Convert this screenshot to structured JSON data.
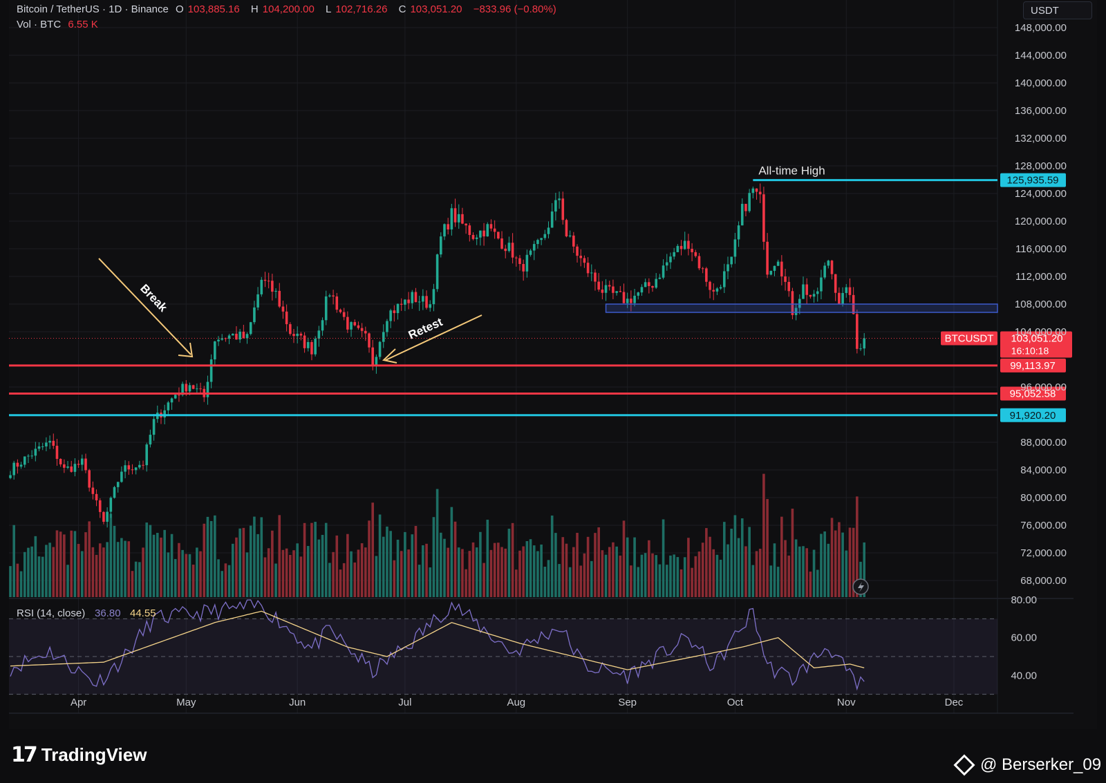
{
  "header": {
    "symbol": "Bitcoin / TetherUS · 1D · Binance",
    "open_label": "O",
    "open": "103,885.16",
    "high_label": "H",
    "high": "104,200.00",
    "low_label": "L",
    "low": "102,716.26",
    "close_label": "C",
    "close": "103,051.20",
    "change": "−833.96 (−0.80%)",
    "vol_label": "Vol · BTC",
    "vol": "6.55 K",
    "currency": "USDT"
  },
  "colors": {
    "up": "#22ab94",
    "down": "#f23645",
    "cyan": "#21c5e0",
    "red_line": "#f23645",
    "zone": "#3d5bcc",
    "rsi": "#7e70c9",
    "rsi_ma": "#f5d48a",
    "annot": "#f5c97a"
  },
  "chart_data": [
    {
      "type": "candlestick",
      "xlabel": "",
      "ylabel": "",
      "ylim": [
        66000,
        148000
      ],
      "yticks": [
        148000,
        144000,
        140000,
        136000,
        132000,
        128000,
        124000,
        120000,
        116000,
        112000,
        108000,
        104000,
        96000,
        88000,
        84000,
        80000,
        76000,
        72000,
        68000
      ],
      "ytick_labels": [
        "148,000.00",
        "144,000.00",
        "140,000.00",
        "136,000.00",
        "132,000.00",
        "128,000.00",
        "124,000.00",
        "120,000.00",
        "116,000.00",
        "112,000.00",
        "108,000.00",
        "104,000.00",
        "96,000.00",
        "88,000.00",
        "84,000.00",
        "80,000.00",
        "76,000.00",
        "72,000.00",
        "68,000.00"
      ],
      "xticks": [
        "Apr",
        "May",
        "Jun",
        "Jul",
        "Aug",
        "Sep",
        "Oct",
        "Nov",
        "Dec"
      ],
      "series_anchors": [
        [
          "2025-03-13",
          84000
        ],
        [
          "2025-03-18",
          86000
        ],
        [
          "2025-03-24",
          88000
        ],
        [
          "2025-03-28",
          84000
        ],
        [
          "2025-04-02",
          85000
        ],
        [
          "2025-04-06",
          79000
        ],
        [
          "2025-04-08",
          76300
        ],
        [
          "2025-04-13",
          84000
        ],
        [
          "2025-04-19",
          85000
        ],
        [
          "2025-04-22",
          91000
        ],
        [
          "2025-04-28",
          95000
        ],
        [
          "2025-05-02",
          96500
        ],
        [
          "2025-05-06",
          94500
        ],
        [
          "2025-05-09",
          103000
        ],
        [
          "2025-05-14",
          103500
        ],
        [
          "2025-05-18",
          103000
        ],
        [
          "2025-05-22",
          111500
        ],
        [
          "2025-05-26",
          109500
        ],
        [
          "2025-05-30",
          104000
        ],
        [
          "2025-06-05",
          101500
        ],
        [
          "2025-06-10",
          109800
        ],
        [
          "2025-06-15",
          105000
        ],
        [
          "2025-06-20",
          103000
        ],
        [
          "2025-06-22",
          99500
        ],
        [
          "2025-06-26",
          106500
        ],
        [
          "2025-07-03",
          109000
        ],
        [
          "2025-07-08",
          108000
        ],
        [
          "2025-07-11",
          117500
        ],
        [
          "2025-07-14",
          121000
        ],
        [
          "2025-07-20",
          118000
        ],
        [
          "2025-07-24",
          119000
        ],
        [
          "2025-07-31",
          115500
        ],
        [
          "2025-08-02",
          113000
        ],
        [
          "2025-08-08",
          117000
        ],
        [
          "2025-08-13",
          123500
        ],
        [
          "2025-08-15",
          118000
        ],
        [
          "2025-08-20",
          113500
        ],
        [
          "2025-08-25",
          110000
        ],
        [
          "2025-09-01",
          108500
        ],
        [
          "2025-09-08",
          111000
        ],
        [
          "2025-09-14",
          115500
        ],
        [
          "2025-09-18",
          117000
        ],
        [
          "2025-09-25",
          109500
        ],
        [
          "2025-09-30",
          114000
        ],
        [
          "2025-10-03",
          121500
        ],
        [
          "2025-10-06",
          124500
        ],
        [
          "2025-10-08",
          123000
        ],
        [
          "2025-10-10",
          113000
        ],
        [
          "2025-10-13",
          115000
        ],
        [
          "2025-10-17",
          107000
        ],
        [
          "2025-10-20",
          110500
        ],
        [
          "2025-10-23",
          108500
        ],
        [
          "2025-10-27",
          114500
        ],
        [
          "2025-10-30",
          108500
        ],
        [
          "2025-11-02",
          110000
        ],
        [
          "2025-11-04",
          101500
        ],
        [
          "2025-11-06",
          103051
        ]
      ],
      "last_price": "103,051.20",
      "last_label": "BTCUSDT",
      "countdown": "16:10:18",
      "levels": [
        {
          "value": 125935.59,
          "label": "125,935.59",
          "color": "cyan",
          "from": "2025-10-06",
          "caption": "All-time High"
        },
        {
          "value": 99113.97,
          "label": "99,113.97",
          "color": "red"
        },
        {
          "value": 95052.58,
          "label": "95,052.58",
          "color": "red"
        },
        {
          "value": 91920.2,
          "label": "91,920.20",
          "color": "cyan"
        }
      ],
      "zone": {
        "low": 106800,
        "high": 108000,
        "from": "2025-08-26"
      },
      "annotations": [
        "Break",
        "Retest"
      ]
    },
    {
      "type": "line",
      "title": "RSI (14, close)",
      "values_shown": [
        "36.80",
        "44.55"
      ],
      "ylim": [
        20,
        80
      ],
      "yticks": [
        80,
        60,
        40
      ],
      "ytick_labels": [
        "80.00",
        "60.00",
        "40.00"
      ],
      "bands": [
        70,
        50,
        30
      ],
      "series": [
        {
          "name": "RSI",
          "anchors": [
            [
              "2025-03-13",
              44
            ],
            [
              "2025-03-24",
              53
            ],
            [
              "2025-04-06",
              36
            ],
            [
              "2025-04-13",
              48
            ],
            [
              "2025-04-22",
              70
            ],
            [
              "2025-05-09",
              74
            ],
            [
              "2025-05-22",
              77
            ],
            [
              "2025-06-05",
              54
            ],
            [
              "2025-06-10",
              64
            ],
            [
              "2025-06-22",
              42
            ],
            [
              "2025-07-03",
              58
            ],
            [
              "2025-07-14",
              78
            ],
            [
              "2025-07-31",
              52
            ],
            [
              "2025-08-13",
              66
            ],
            [
              "2025-08-20",
              45
            ],
            [
              "2025-09-01",
              40
            ],
            [
              "2025-09-18",
              60
            ],
            [
              "2025-09-25",
              44
            ],
            [
              "2025-10-06",
              74
            ],
            [
              "2025-10-10",
              45
            ],
            [
              "2025-10-17",
              38
            ],
            [
              "2025-10-27",
              56
            ],
            [
              "2025-11-04",
              34
            ],
            [
              "2025-11-06",
              37
            ]
          ]
        },
        {
          "name": "RSI-based MA",
          "anchors": [
            [
              "2025-03-13",
              45
            ],
            [
              "2025-04-08",
              47
            ],
            [
              "2025-05-09",
              68
            ],
            [
              "2025-05-22",
              74
            ],
            [
              "2025-06-15",
              55
            ],
            [
              "2025-06-26",
              50
            ],
            [
              "2025-07-14",
              68
            ],
            [
              "2025-08-02",
              57
            ],
            [
              "2025-09-01",
              43
            ],
            [
              "2025-09-25",
              52
            ],
            [
              "2025-10-03",
              55
            ],
            [
              "2025-10-13",
              60
            ],
            [
              "2025-10-23",
              44
            ],
            [
              "2025-11-02",
              46
            ],
            [
              "2025-11-06",
              44
            ]
          ]
        }
      ]
    }
  ],
  "footer": {
    "brand": "TradingView",
    "watermark": "@ Berserker_09"
  }
}
